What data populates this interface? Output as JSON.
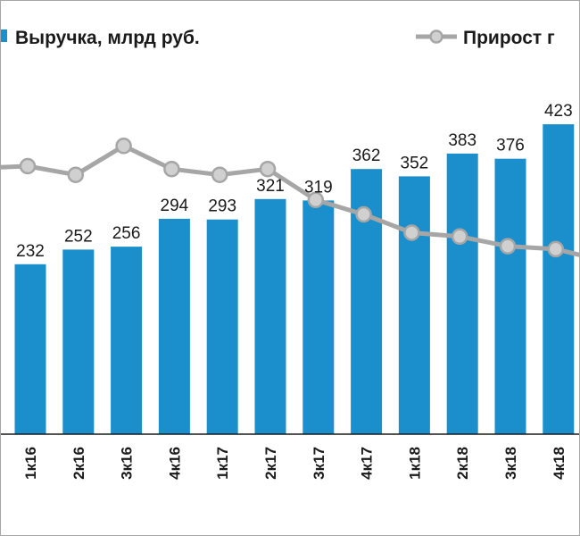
{
  "chart_data": {
    "type": "bar",
    "categories": [
      "1к16",
      "2к16",
      "3к16",
      "4к16",
      "1к17",
      "2к17",
      "3к17",
      "4к17",
      "1к18",
      "2к18",
      "3к18",
      "4к18"
    ],
    "series": [
      {
        "name": "Выручка, млрд руб.",
        "type": "bar",
        "color": "#1b8fcb",
        "values": [
          232,
          252,
          256,
          294,
          293,
          321,
          319,
          362,
          352,
          383,
          376,
          423
        ],
        "data_labels": [
          "232",
          "252",
          "256",
          "294",
          "293",
          "321",
          "319",
          "362",
          "352",
          "383",
          "376",
          "423"
        ]
      },
      {
        "name": "Прирост г",
        "type": "line",
        "color": "#a6a6a6",
        "marker_color": "#d0d0d0",
        "relative_level": [
          0.5,
          0.41,
          0.71,
          0.47,
          0.41,
          0.47,
          0.15,
          0.0,
          -0.19,
          -0.23,
          -0.33,
          -0.36
        ]
      }
    ],
    "legend": "top",
    "grid": false,
    "ylim": [
      0,
      480
    ]
  },
  "colors": {
    "bar": "#1b8fcb",
    "line": "#a6a6a6",
    "marker": "#d0d0d0",
    "axis": "#1a1a1a",
    "border": "#a6a6a6"
  }
}
